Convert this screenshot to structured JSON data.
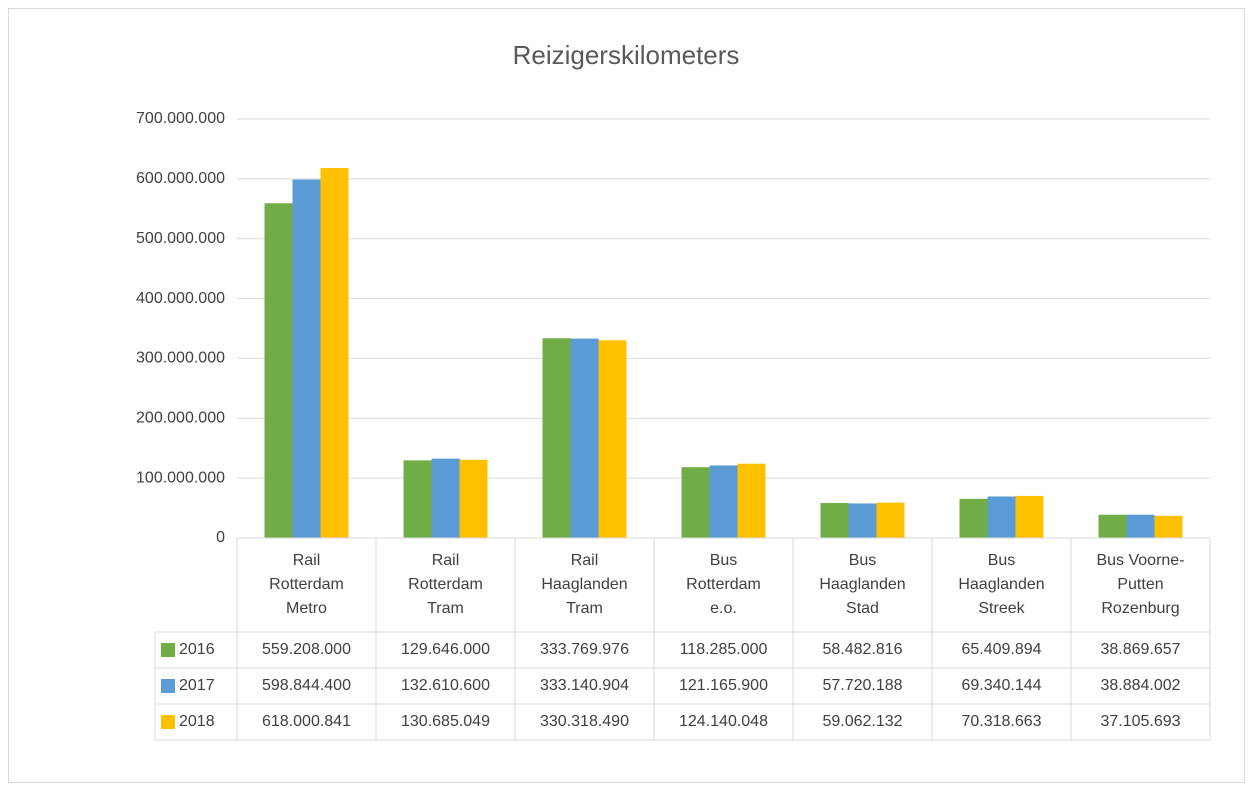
{
  "chart_data": {
    "type": "bar",
    "title": "Reizigerskilometers",
    "categories": [
      "Rail Rotterdam Metro",
      "Rail Rotterdam Tram",
      "Rail Haaglanden Tram",
      "Bus Rotterdam e.o.",
      "Bus Haaglanden Stad",
      "Bus Haaglanden Streek",
      "Bus Voorne-Putten Rozenburg"
    ],
    "series": [
      {
        "name": "2016",
        "color": "#70ad47",
        "values": [
          559208000,
          129646000,
          333769976,
          118285000,
          58482816,
          65409894,
          38869657
        ],
        "value_labels": [
          "559.208.000",
          "129.646.000",
          "333.769.976",
          "118.285.000",
          "58.482.816",
          "65.409.894",
          "38.869.657"
        ]
      },
      {
        "name": "2017",
        "color": "#5b9bd5",
        "values": [
          598844400,
          132610600,
          333140904,
          121165900,
          57720188,
          69340144,
          38884002
        ],
        "value_labels": [
          "598.844.400",
          "132.610.600",
          "333.140.904",
          "121.165.900",
          "57.720.188",
          "69.340.144",
          "38.884.002"
        ]
      },
      {
        "name": "2018",
        "color": "#ffc000",
        "values": [
          618000841,
          130685049,
          330318490,
          124140048,
          59062132,
          70318663,
          37105693
        ],
        "value_labels": [
          "618.000.841",
          "130.685.049",
          "330.318.490",
          "124.140.048",
          "59.062.132",
          "70.318.663",
          "37.105.693"
        ]
      }
    ],
    "ylim": [
      0,
      700000000
    ],
    "yticks": [
      0,
      {
        "value": 100000000,
        "label": "100.000.000"
      },
      {
        "value": 200000000,
        "label": "200.000.000"
      },
      {
        "value": 300000000,
        "label": "300.000.000"
      },
      {
        "value": 400000000,
        "label": "400.000.000"
      },
      {
        "value": 500000000,
        "label": "500.000.000"
      },
      {
        "value": 600000000,
        "label": "600.000.000"
      },
      {
        "value": 700000000,
        "label": "700.000.000"
      }
    ],
    "grid": true
  }
}
